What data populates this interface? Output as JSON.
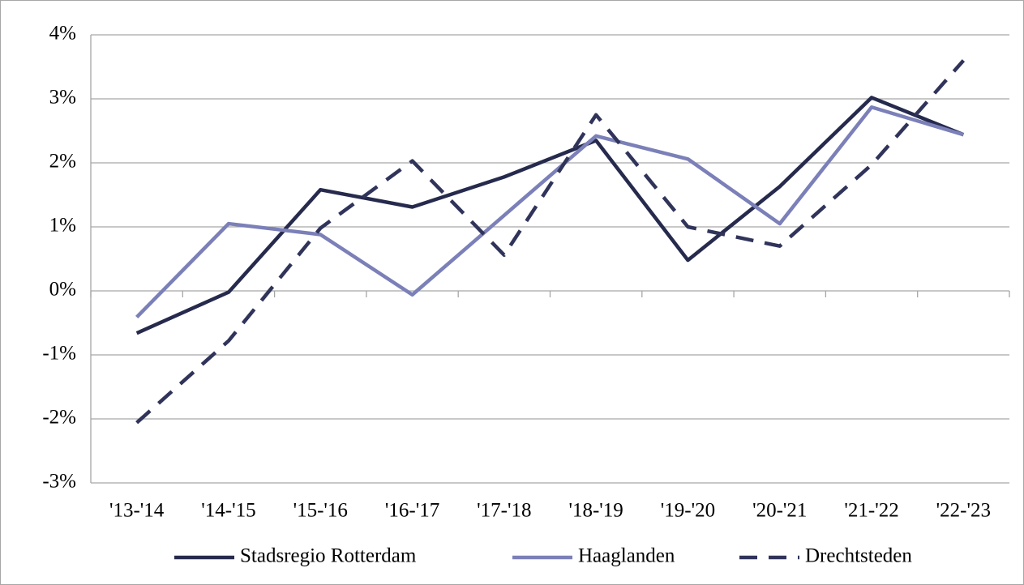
{
  "chart_data": {
    "type": "line",
    "categories": [
      "'13-'14",
      "'14-'15",
      "'15-'16",
      "'16-'17",
      "'17-'18",
      "'18-'19",
      "'19-'20",
      "'20-'21",
      "'21-'22",
      "'22-'23"
    ],
    "series": [
      {
        "name": "Stadsregio Rotterdam",
        "color": "#262a4d",
        "dash": false,
        "values": [
          -0.66,
          -0.02,
          1.58,
          1.31,
          1.78,
          2.35,
          0.48,
          1.63,
          3.02,
          2.44
        ]
      },
      {
        "name": "Haaglanden",
        "color": "#7b80b8",
        "dash": false,
        "values": [
          -0.41,
          1.05,
          0.88,
          -0.06,
          1.18,
          2.42,
          2.06,
          1.05,
          2.87,
          2.44
        ]
      },
      {
        "name": "Drechtsteden",
        "color": "#30345a",
        "dash": true,
        "values": [
          -2.06,
          -0.78,
          0.98,
          2.03,
          0.56,
          2.75,
          1.0,
          0.7,
          1.97,
          3.6
        ]
      }
    ],
    "ylim": [
      -3,
      4
    ],
    "yticks": [
      {
        "value": -3,
        "label": "-3%"
      },
      {
        "value": -2,
        "label": "-2%"
      },
      {
        "value": -1,
        "label": "-1%"
      },
      {
        "value": 0,
        "label": "0%"
      },
      {
        "value": 1,
        "label": "1%"
      },
      {
        "value": 2,
        "label": "2%"
      },
      {
        "value": 3,
        "label": "3%"
      },
      {
        "value": 4,
        "label": "4%"
      }
    ],
    "grid": true,
    "legend": "bottom"
  }
}
